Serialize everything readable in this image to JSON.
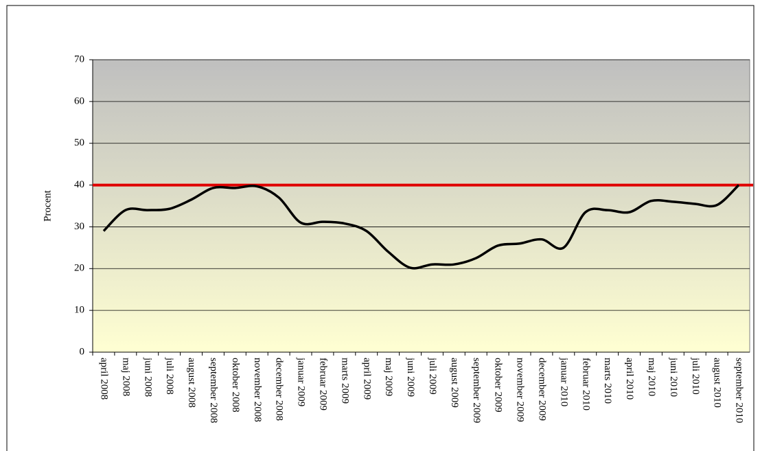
{
  "chart_data": {
    "type": "line",
    "y_label": "Procent",
    "categories": [
      "april 2008",
      "maj 2008",
      "juni 2008",
      "juli 2008",
      "august 2008",
      "september 2008",
      "oktober 2008",
      "november 2008",
      "december 2008",
      "januar 2009",
      "februar 2009",
      "marts 2009",
      "april 2009",
      "maj 2009",
      "juni 2009",
      "juli 2009",
      "august 2009",
      "september 2009",
      "oktober 2009",
      "november 2009",
      "december 2009",
      "januar 2010",
      "februar 2010",
      "marts 2010",
      "april 2010",
      "maj 2010",
      "juni 2010",
      "juli 2010",
      "august 2010",
      "september 2010"
    ],
    "series": [
      {
        "color": "#000000",
        "values": [
          29,
          34,
          34,
          34.3,
          36.5,
          39.3,
          39.3,
          39.7,
          37,
          31,
          31.2,
          30.8,
          29,
          24,
          20.2,
          21,
          21,
          22.5,
          25.5,
          26,
          27,
          25,
          33.5,
          34,
          33.5,
          36.2,
          36,
          35.5,
          35.2,
          40
        ]
      }
    ],
    "reference_line": {
      "value": 40,
      "color": "#e00000"
    },
    "ylim": [
      0,
      70
    ],
    "yticks": [
      0,
      10,
      20,
      30,
      40,
      50,
      60,
      70
    ],
    "grid": true
  }
}
